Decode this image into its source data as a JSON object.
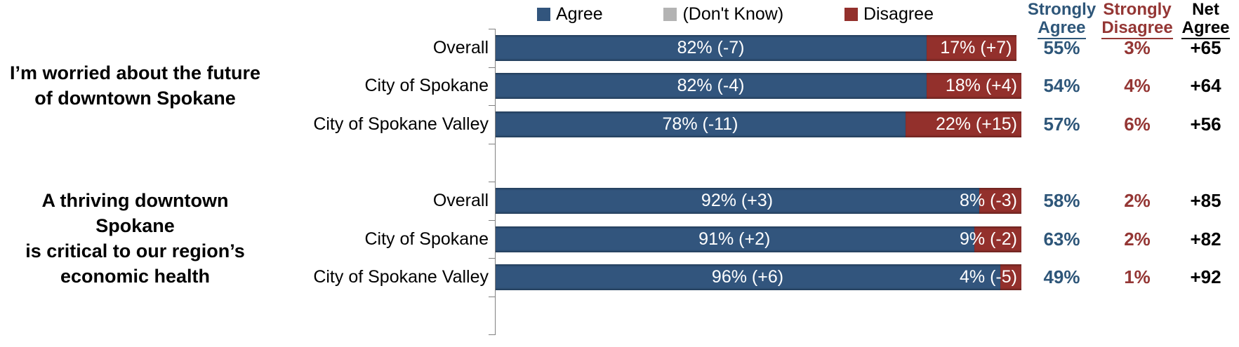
{
  "chart_data": {
    "type": "bar",
    "subtype": "horizontal-stacked",
    "unit": "percent",
    "xlim": [
      0,
      100
    ],
    "legend_position": "top",
    "grid": false,
    "legend": [
      {
        "label": "Agree"
      },
      {
        "label": "(Don't Know)"
      },
      {
        "label": "Disagree"
      }
    ],
    "colors": {
      "agree": "#32557D",
      "dont_know": "#B3B3B3",
      "disagree": "#93302C",
      "strongly_agree_text": "#2E5679",
      "strongly_disagree_text": "#943634",
      "net_agree_text": "#000000"
    },
    "columns": {
      "strongly_agree_line1": "Strongly",
      "strongly_agree_line2": "Agree",
      "strongly_disagree_line1": "Strongly",
      "strongly_disagree_line2": "Disagree",
      "net_agree_line1": "Net",
      "net_agree_line2": "Agree"
    },
    "groups": [
      {
        "title": "I’m worried about the future\nof downtown Spokane",
        "rows": [
          {
            "label": "Overall",
            "agree_pct": 82,
            "agree_label": "82% (-7)",
            "disagree_pct": 17,
            "disagree_label": "17% (+7)",
            "strongly_agree": "55%",
            "strongly_disagree": "3%",
            "net_agree": "+65"
          },
          {
            "label": "City of Spokane",
            "agree_pct": 82,
            "agree_label": "82% (-4)",
            "disagree_pct": 18,
            "disagree_label": "18% (+4)",
            "strongly_agree": "54%",
            "strongly_disagree": "4%",
            "net_agree": "+64"
          },
          {
            "label": "City of Spokane Valley",
            "agree_pct": 78,
            "agree_label": "78% (-11)",
            "disagree_pct": 22,
            "disagree_label": "22% (+15)",
            "strongly_agree": "57%",
            "strongly_disagree": "6%",
            "net_agree": "+56"
          }
        ]
      },
      {
        "title": "A thriving downtown Spokane\nis critical to our region’s\neconomic health",
        "rows": [
          {
            "label": "Overall",
            "agree_pct": 92,
            "agree_label": "92% (+3)",
            "disagree_pct": 8,
            "disagree_label": "8% (-3)",
            "strongly_agree": "58%",
            "strongly_disagree": "2%",
            "net_agree": "+85"
          },
          {
            "label": "City of Spokane",
            "agree_pct": 91,
            "agree_label": "91% (+2)",
            "disagree_pct": 9,
            "disagree_label": "9% (-2)",
            "strongly_agree": "63%",
            "strongly_disagree": "2%",
            "net_agree": "+82"
          },
          {
            "label": "City of Spokane Valley",
            "agree_pct": 96,
            "agree_label": "96% (+6)",
            "disagree_pct": 4,
            "disagree_label": "4% (-5)",
            "strongly_agree": "49%",
            "strongly_disagree": "1%",
            "net_agree": "+92"
          }
        ]
      }
    ]
  }
}
